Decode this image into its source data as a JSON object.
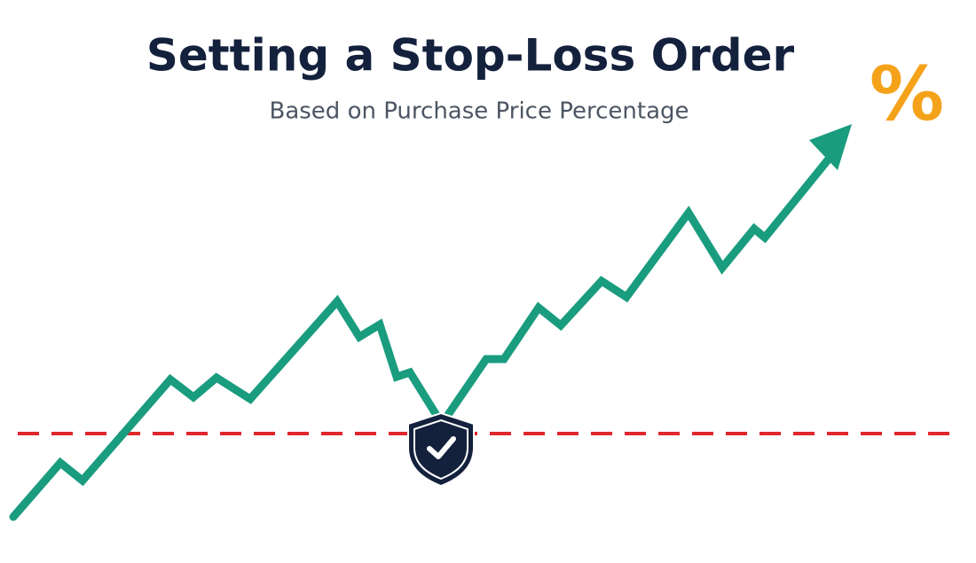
{
  "header": {
    "title": "Setting a Stop-Loss Order",
    "subtitle": "Based on Purchase Price Percentage",
    "icon": "%"
  }
}
